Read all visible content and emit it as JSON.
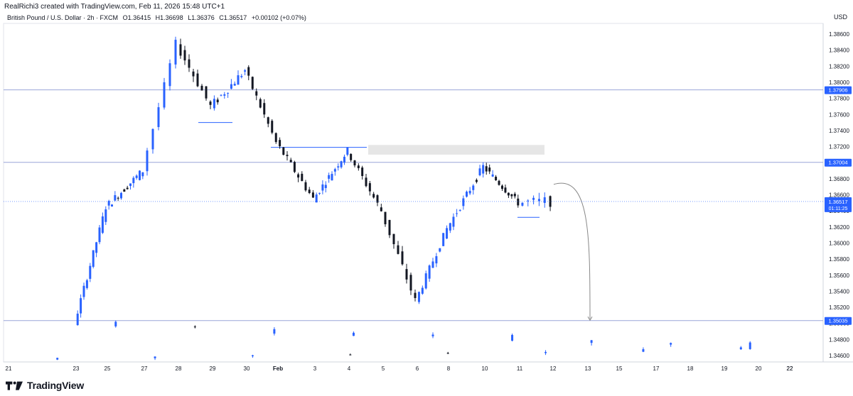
{
  "header": {
    "credit": "RealRichi3 created with TradingView.com, Feb 11, 2026 15:48 UTC+1",
    "symbol": "British Pound / U.S. Dollar · 2h · FXCM",
    "open": "O1.36415",
    "high": "H1.36698",
    "low": "L1.36376",
    "close": "C1.36517",
    "change": "+0.00102 (+0.07%)"
  },
  "price_axis": {
    "currency": "USD"
  },
  "branding": {
    "name": "TradingView"
  },
  "colors": {
    "up": "#2962ff",
    "down": "#131722",
    "grid_line": "#9aa6d9",
    "badge": "#2962ff",
    "zone": "#e6e6e6",
    "arrow": "#888888"
  },
  "chart_data": {
    "type": "candlestick",
    "symbol": "British Pound / U.S. Dollar",
    "timeframe": "2h",
    "ylim": [
      1.345,
      1.3875
    ],
    "y_ticks": [
      "1.38600",
      "1.38400",
      "1.38200",
      "1.38000",
      "1.37800",
      "1.37600",
      "1.37400",
      "1.37200",
      "1.37000",
      "1.36800",
      "1.36600",
      "1.36400",
      "1.36200",
      "1.36000",
      "1.35800",
      "1.35600",
      "1.35400",
      "1.35200",
      "1.35000",
      "1.34800",
      "1.34600"
    ],
    "x_ticks": [
      "21",
      "22",
      "23",
      "25",
      "27",
      "28",
      "29",
      "30",
      "Feb",
      "3",
      "4",
      "5",
      "6",
      "8",
      "10",
      "11",
      "12",
      "13",
      "15",
      "17",
      "18",
      "19",
      "20",
      "22"
    ],
    "current_price": {
      "value": 1.36517,
      "label": "1.36517",
      "countdown": "01:11:25"
    },
    "horizontal_levels": [
      {
        "value": 1.37906,
        "label": "1.37906"
      },
      {
        "value": 1.37004,
        "label": "1.37004"
      },
      {
        "value": 1.35035,
        "label": "1.35035"
      }
    ],
    "zone": {
      "x_start": "4",
      "x_end": "11",
      "y_low": 1.371,
      "y_high": 1.3722
    },
    "drawn_lines": [
      {
        "x_start": "29",
        "x_end": "29",
        "y": 1.375
      },
      {
        "x_start": "Feb",
        "x_end": "4",
        "y": 1.3719
      },
      {
        "x_start": "11",
        "x_end": "11",
        "y": 1.3632
      }
    ],
    "projection": {
      "from_date": "11",
      "from": 1.3673,
      "to_date": "13",
      "to": 1.3503
    },
    "segments": [
      {
        "from_day": "21",
        "to_day": "22",
        "start": 1.3455,
        "end": 1.347,
        "bars": 8,
        "noise": 0.0004
      },
      {
        "from_day": "22",
        "to_day": "23",
        "start": 1.347,
        "end": 1.35,
        "bars": 9,
        "noise": 0.0006
      },
      {
        "from_day": "23",
        "to_day": "25",
        "start": 1.35,
        "end": 1.3645,
        "bars": 10,
        "noise": 0.0009
      },
      {
        "from_day": "25",
        "to_day": "27",
        "start": 1.3645,
        "end": 1.369,
        "bars": 12,
        "noise": 0.001
      },
      {
        "from_day": "27",
        "to_day": "28",
        "start": 1.369,
        "end": 1.3848,
        "bars": 6,
        "noise": 0.001
      },
      {
        "from_day": "28",
        "to_day": "29",
        "start": 1.3848,
        "end": 1.377,
        "bars": 8,
        "noise": 0.0012
      },
      {
        "from_day": "29",
        "to_day": "30",
        "start": 1.377,
        "end": 1.3815,
        "bars": 10,
        "noise": 0.0012
      },
      {
        "from_day": "30",
        "to_day": "Feb",
        "start": 1.3815,
        "end": 1.3725,
        "bars": 8,
        "noise": 0.001
      },
      {
        "from_day": "Feb",
        "to_day": "3",
        "start": 1.3725,
        "end": 1.3655,
        "bars": 10,
        "noise": 0.001
      },
      {
        "from_day": "3",
        "to_day": "4",
        "start": 1.3655,
        "end": 1.3715,
        "bars": 11,
        "noise": 0.0009
      },
      {
        "from_day": "4",
        "to_day": "5",
        "start": 1.3715,
        "end": 1.364,
        "bars": 9,
        "noise": 0.001
      },
      {
        "from_day": "5",
        "to_day": "6",
        "start": 1.364,
        "end": 1.3528,
        "bars": 8,
        "noise": 0.0012
      },
      {
        "from_day": "6",
        "to_day": "8",
        "start": 1.3528,
        "end": 1.3618,
        "bars": 9,
        "noise": 0.0009
      },
      {
        "from_day": "8",
        "to_day": "10",
        "start": 1.3618,
        "end": 1.3695,
        "bars": 11,
        "noise": 0.001
      },
      {
        "from_day": "10",
        "to_day": "11",
        "start": 1.3695,
        "end": 1.365,
        "bars": 11,
        "noise": 0.0009
      },
      {
        "from_day": "11",
        "to_day": "12",
        "start": 1.365,
        "end": 1.3652,
        "bars": 6,
        "noise": 0.0014
      }
    ]
  }
}
